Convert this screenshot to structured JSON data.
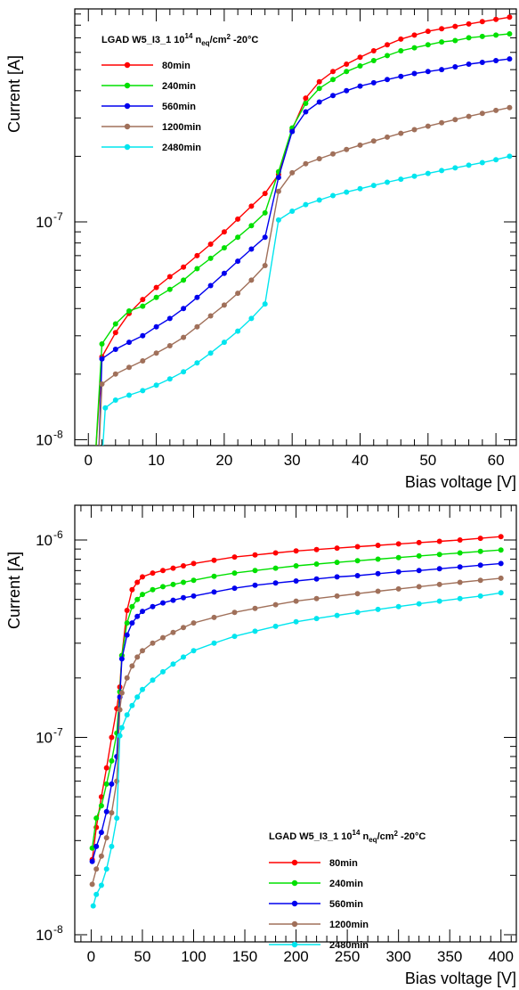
{
  "chart_data": [
    {
      "type": "line",
      "xlabel": "Bias voltage [V]",
      "ylabel": "Current [A]",
      "xlim": [
        -2,
        63
      ],
      "ylim": [
        9.4e-09,
        9.5e-07
      ],
      "yscale": "log",
      "xticks": [
        "0",
        "10",
        "20",
        "30",
        "40",
        "50",
        "60"
      ],
      "yticks": [
        {
          "label": "10",
          "exp": "-8",
          "value": 1e-08
        },
        {
          "label": "10",
          "exp": "-7",
          "value": 1e-07
        }
      ],
      "legend": {
        "position": "top-left",
        "title_prefix": "LGAD W5_I3_1   10",
        "title_exp": "14",
        "title_unit": " n",
        "title_sub": "eq",
        "title_suffix": "/cm",
        "title_pow": "2",
        "title_temp": "   -20°C"
      },
      "series": [
        {
          "name": "80min",
          "color": "#ff0000",
          "x": [
            1,
            2,
            4,
            6,
            8,
            10,
            12,
            14,
            16,
            18,
            20,
            22,
            24,
            26,
            28,
            30,
            32,
            34,
            36,
            38,
            40,
            42,
            44,
            46,
            48,
            50,
            52,
            54,
            56,
            58,
            60,
            62
          ],
          "y": [
            8e-09,
            2.4e-08,
            3.1e-08,
            3.8e-08,
            4.4e-08,
            5e-08,
            5.6e-08,
            6.2e-08,
            7e-08,
            7.9e-08,
            9e-08,
            1.03e-07,
            1.18e-07,
            1.35e-07,
            1.65e-07,
            2.65e-07,
            3.7e-07,
            4.4e-07,
            4.9e-07,
            5.3e-07,
            5.7e-07,
            6.1e-07,
            6.5e-07,
            6.9e-07,
            7.2e-07,
            7.5e-07,
            7.7e-07,
            7.9e-07,
            8.1e-07,
            8.3e-07,
            8.5e-07,
            8.7e-07
          ]
        },
        {
          "name": "240min",
          "color": "#00e000",
          "x": [
            1,
            2,
            4,
            6,
            8,
            10,
            12,
            14,
            16,
            18,
            20,
            22,
            24,
            26,
            28,
            30,
            32,
            34,
            36,
            38,
            40,
            42,
            44,
            46,
            48,
            50,
            52,
            54,
            56,
            58,
            60,
            62
          ],
          "y": [
            8e-09,
            2.75e-08,
            3.4e-08,
            3.9e-08,
            4.1e-08,
            4.5e-08,
            4.9e-08,
            5.4e-08,
            6.1e-08,
            6.8e-08,
            7.6e-08,
            8.5e-08,
            9.6e-08,
            1.1e-07,
            1.7e-07,
            2.7e-07,
            3.5e-07,
            4.1e-07,
            4.5e-07,
            4.9e-07,
            5.2e-07,
            5.5e-07,
            5.8e-07,
            6.1e-07,
            6.3e-07,
            6.5e-07,
            6.7e-07,
            6.8e-07,
            7e-07,
            7.1e-07,
            7.2e-07,
            7.3e-07
          ]
        },
        {
          "name": "560min",
          "color": "#0000ee",
          "x": [
            1.5,
            2,
            4,
            6,
            8,
            10,
            12,
            14,
            16,
            18,
            20,
            22,
            24,
            26,
            28,
            30,
            32,
            34,
            36,
            38,
            40,
            42,
            44,
            46,
            48,
            50,
            52,
            54,
            56,
            58,
            60,
            62
          ],
          "y": [
            8e-09,
            2.35e-08,
            2.6e-08,
            2.8e-08,
            3e-08,
            3.3e-08,
            3.6e-08,
            4e-08,
            4.5e-08,
            5.1e-08,
            5.8e-08,
            6.6e-08,
            7.5e-08,
            8.5e-08,
            1.6e-07,
            2.6e-07,
            3.2e-07,
            3.55e-07,
            3.8e-07,
            4e-07,
            4.2e-07,
            4.35e-07,
            4.5e-07,
            4.65e-07,
            4.8e-07,
            4.9e-07,
            5e-07,
            5.15e-07,
            5.3e-07,
            5.4e-07,
            5.5e-07,
            5.6e-07
          ]
        },
        {
          "name": "1200min",
          "color": "#a0705a",
          "x": [
            1.5,
            2,
            4,
            6,
            8,
            10,
            12,
            14,
            16,
            18,
            20,
            22,
            24,
            26,
            28,
            30,
            32,
            34,
            36,
            38,
            40,
            42,
            44,
            46,
            48,
            50,
            52,
            54,
            56,
            58,
            60,
            62
          ],
          "y": [
            8e-09,
            1.8e-08,
            2e-08,
            2.15e-08,
            2.3e-08,
            2.5e-08,
            2.7e-08,
            2.95e-08,
            3.3e-08,
            3.7e-08,
            4.15e-08,
            4.7e-08,
            5.4e-08,
            6.3e-08,
            1.38e-07,
            1.68e-07,
            1.85e-07,
            1.95e-07,
            2.05e-07,
            2.15e-07,
            2.25e-07,
            2.35e-07,
            2.45e-07,
            2.55e-07,
            2.65e-07,
            2.75e-07,
            2.85e-07,
            2.95e-07,
            3.05e-07,
            3.15e-07,
            3.25e-07,
            3.35e-07
          ]
        },
        {
          "name": "2480min",
          "color": "#00e5ee",
          "x": [
            2,
            2.5,
            4,
            6,
            8,
            10,
            12,
            14,
            16,
            18,
            20,
            22,
            24,
            26,
            28,
            30,
            32,
            34,
            36,
            38,
            40,
            42,
            44,
            46,
            48,
            50,
            52,
            54,
            56,
            58,
            60,
            62
          ],
          "y": [
            8e-09,
            1.4e-08,
            1.52e-08,
            1.6e-08,
            1.68e-08,
            1.78e-08,
            1.9e-08,
            2.05e-08,
            2.25e-08,
            2.5e-08,
            2.8e-08,
            3.15e-08,
            3.6e-08,
            4.2e-08,
            1.02e-07,
            1.12e-07,
            1.2e-07,
            1.26e-07,
            1.32e-07,
            1.37e-07,
            1.42e-07,
            1.47e-07,
            1.52e-07,
            1.57e-07,
            1.62e-07,
            1.67e-07,
            1.72e-07,
            1.77e-07,
            1.82e-07,
            1.87e-07,
            1.93e-07,
            2e-07
          ]
        }
      ]
    },
    {
      "type": "line",
      "xlabel": "Bias voltage [V]",
      "ylabel": "Current [A]",
      "xlim": [
        -16,
        415
      ],
      "ylim": [
        9.2e-09,
        1.5e-06
      ],
      "yscale": "log",
      "xticks": [
        "0",
        "50",
        "100",
        "150",
        "200",
        "250",
        "300",
        "350",
        "400"
      ],
      "yticks": [
        {
          "label": "10",
          "exp": "-8",
          "value": 1e-08
        },
        {
          "label": "10",
          "exp": "-7",
          "value": 1e-07
        },
        {
          "label": "10",
          "exp": "-6",
          "value": 1e-06
        }
      ],
      "legend": {
        "position": "bottom-right",
        "title_prefix": "LGAD W5_I3_1   10",
        "title_exp": "14",
        "title_unit": " n",
        "title_sub": "eq",
        "title_suffix": "/cm",
        "title_pow": "2",
        "title_temp": "   -20°C"
      },
      "series": [
        {
          "name": "80min",
          "color": "#ff0000",
          "x": [
            1,
            5,
            10,
            15,
            20,
            25,
            28,
            30,
            35,
            40,
            45,
            50,
            60,
            70,
            80,
            90,
            100,
            120,
            140,
            160,
            180,
            200,
            220,
            240,
            260,
            280,
            300,
            320,
            340,
            360,
            380,
            400
          ],
          "y": [
            2.4e-08,
            3.5e-08,
            5e-08,
            7e-08,
            1e-07,
            1.4e-07,
            1.8e-07,
            2.6e-07,
            4.4e-07,
            5.6e-07,
            6.1e-07,
            6.5e-07,
            6.8e-07,
            7e-07,
            7.2e-07,
            7.4e-07,
            7.6e-07,
            7.9e-07,
            8.2e-07,
            8.4e-07,
            8.6e-07,
            8.8e-07,
            8.95e-07,
            9.1e-07,
            9.25e-07,
            9.4e-07,
            9.55e-07,
            9.7e-07,
            9.85e-07,
            1e-06,
            1.02e-06,
            1.04e-06
          ]
        },
        {
          "name": "240min",
          "color": "#00e000",
          "x": [
            1,
            5,
            10,
            15,
            20,
            25,
            28,
            30,
            35,
            40,
            45,
            50,
            60,
            70,
            80,
            90,
            100,
            120,
            140,
            160,
            180,
            200,
            220,
            240,
            260,
            280,
            300,
            320,
            340,
            360,
            380,
            400
          ],
          "y": [
            2.75e-08,
            3.9e-08,
            4.5e-08,
            5.8e-08,
            7.6e-08,
            1.05e-07,
            1.7e-07,
            2.6e-07,
            3.8e-07,
            4.6e-07,
            5e-07,
            5.3e-07,
            5.6e-07,
            5.8e-07,
            5.95e-07,
            6.1e-07,
            6.25e-07,
            6.55e-07,
            6.8e-07,
            7e-07,
            7.2e-07,
            7.4e-07,
            7.55e-07,
            7.7e-07,
            7.85e-07,
            8e-07,
            8.15e-07,
            8.3e-07,
            8.45e-07,
            8.6e-07,
            8.75e-07,
            8.9e-07
          ]
        },
        {
          "name": "560min",
          "color": "#0000ee",
          "x": [
            1,
            5,
            10,
            15,
            20,
            25,
            28,
            30,
            35,
            40,
            45,
            50,
            60,
            70,
            80,
            90,
            100,
            120,
            140,
            160,
            180,
            200,
            220,
            240,
            260,
            280,
            300,
            320,
            340,
            360,
            380,
            400
          ],
          "y": [
            2.35e-08,
            2.8e-08,
            3.3e-08,
            4.2e-08,
            5.8e-08,
            8e-08,
            1.6e-07,
            2.5e-07,
            3.3e-07,
            3.8e-07,
            4.1e-07,
            4.35e-07,
            4.6e-07,
            4.8e-07,
            4.95e-07,
            5.1e-07,
            5.2e-07,
            5.45e-07,
            5.7e-07,
            5.9e-07,
            6.05e-07,
            6.2e-07,
            6.35e-07,
            6.5e-07,
            6.6e-07,
            6.75e-07,
            6.9e-07,
            7e-07,
            7.15e-07,
            7.3e-07,
            7.45e-07,
            7.6e-07
          ]
        },
        {
          "name": "1200min",
          "color": "#a0705a",
          "x": [
            1,
            5,
            10,
            15,
            20,
            25,
            28,
            30,
            35,
            40,
            45,
            50,
            60,
            70,
            80,
            90,
            100,
            120,
            140,
            160,
            180,
            200,
            220,
            240,
            260,
            280,
            300,
            320,
            340,
            360,
            380,
            400
          ],
          "y": [
            1.8e-08,
            2.15e-08,
            2.5e-08,
            3.1e-08,
            4.15e-08,
            6e-08,
            1.38e-07,
            1.68e-07,
            2e-07,
            2.3e-07,
            2.55e-07,
            2.75e-07,
            3e-07,
            3.2e-07,
            3.4e-07,
            3.6e-07,
            3.8e-07,
            4.05e-07,
            4.3e-07,
            4.5e-07,
            4.7e-07,
            4.9e-07,
            5.05e-07,
            5.2e-07,
            5.35e-07,
            5.5e-07,
            5.65e-07,
            5.8e-07,
            5.95e-07,
            6.1e-07,
            6.25e-07,
            6.4e-07
          ]
        },
        {
          "name": "2480min",
          "color": "#00e5ee",
          "x": [
            2,
            5,
            10,
            15,
            20,
            25,
            28,
            30,
            35,
            40,
            45,
            50,
            60,
            70,
            80,
            90,
            100,
            120,
            140,
            160,
            180,
            200,
            220,
            240,
            260,
            280,
            300,
            320,
            340,
            360,
            380,
            400
          ],
          "y": [
            1.4e-08,
            1.6e-08,
            1.78e-08,
            2.15e-08,
            2.8e-08,
            3.9e-08,
            1.02e-07,
            1.12e-07,
            1.3e-07,
            1.45e-07,
            1.6e-07,
            1.75e-07,
            1.95e-07,
            2.15e-07,
            2.35e-07,
            2.55e-07,
            2.75e-07,
            3e-07,
            3.25e-07,
            3.45e-07,
            3.65e-07,
            3.85e-07,
            4e-07,
            4.15e-07,
            4.3e-07,
            4.45e-07,
            4.6e-07,
            4.75e-07,
            4.9e-07,
            5.05e-07,
            5.2e-07,
            5.4e-07
          ]
        }
      ]
    }
  ]
}
